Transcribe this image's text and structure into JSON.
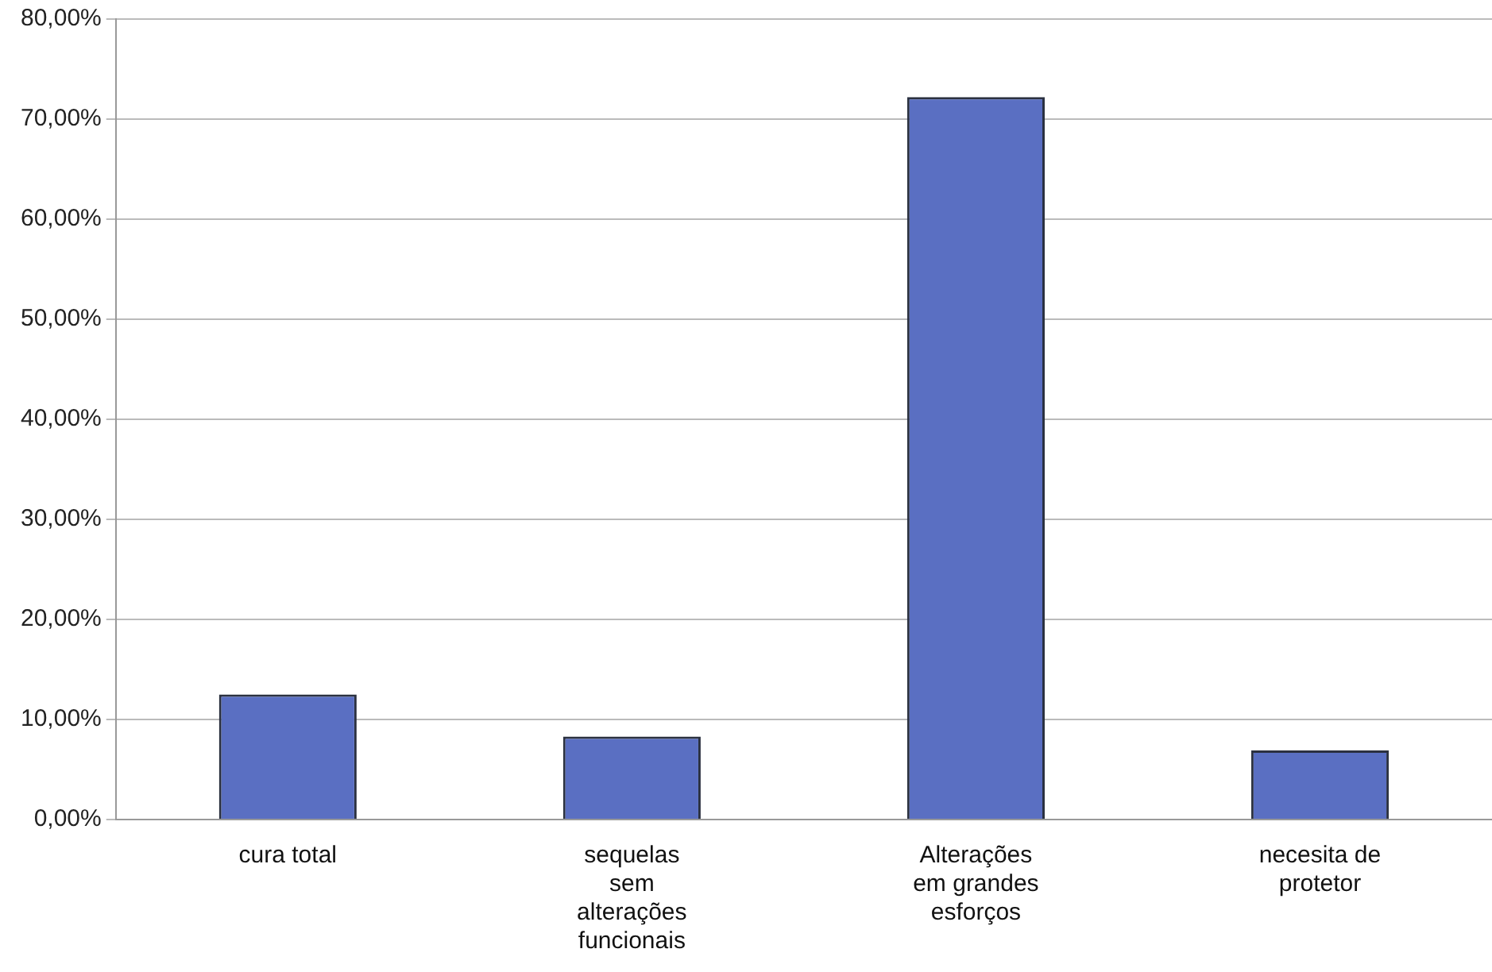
{
  "chart_data": {
    "type": "bar",
    "categories": [
      "cura total",
      "sequelas sem alterações funcionais",
      "Alterações em grandes esforços",
      "necesita de protetor"
    ],
    "values": [
      12.5,
      8.3,
      72.2,
      6.9
    ],
    "color": "#5a6fc2",
    "ylim": [
      0,
      80
    ],
    "yticks": [
      {
        "value": 0,
        "label": "0,00%"
      },
      {
        "value": 10,
        "label": "10,00%"
      },
      {
        "value": 20,
        "label": "20,00%"
      },
      {
        "value": 30,
        "label": "30,00%"
      },
      {
        "value": 40,
        "label": "40,00%"
      },
      {
        "value": 50,
        "label": "50,00%"
      },
      {
        "value": 60,
        "label": "60,00%"
      },
      {
        "value": 70,
        "label": "70,00%"
      },
      {
        "value": 80,
        "label": "80,00%"
      }
    ],
    "grid": "y",
    "legend": false
  }
}
